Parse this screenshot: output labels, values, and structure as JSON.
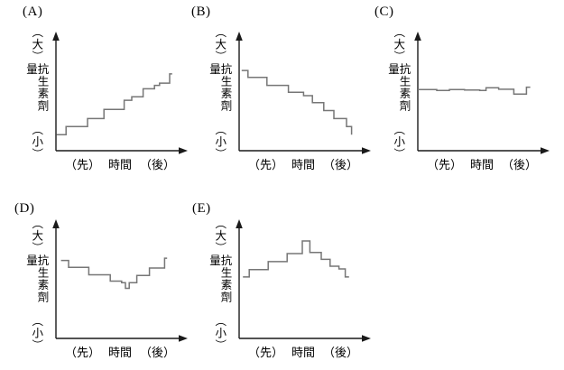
{
  "figure_title": "",
  "axis_text": {
    "y_max": "（大）",
    "y_title": "抗生素劑量",
    "y_min": "（小）",
    "x_left": "（先）",
    "x_title": "時間",
    "x_right": "（後）"
  },
  "panels": [
    {
      "label": "(A)",
      "y_max": "（大）",
      "y_title": "抗生素劑量",
      "y_min": "（小）",
      "x_left": "（先）",
      "x_title": "時間",
      "x_right": "（後）"
    },
    {
      "label": "(B)",
      "y_max": "（大）",
      "y_title": "抗生素劑量",
      "y_min": "（小）",
      "x_left": "（先）",
      "x_title": "時間",
      "x_right": "（後）"
    },
    {
      "label": "(C)",
      "y_max": "（大）",
      "y_title": "抗生素劑量",
      "y_min": "（小）",
      "x_left": "（先）",
      "x_title": "時間",
      "x_right": "（後）"
    },
    {
      "label": "(D)",
      "y_max": "（大）",
      "y_title": "抗生素劑量",
      "y_min": "（小）",
      "x_left": "（先）",
      "x_title": "時間",
      "x_right": "（後）"
    },
    {
      "label": "(E)",
      "y_max": "（大）",
      "y_title": "抗生素劑量",
      "y_min": "（小）",
      "x_left": "（先）",
      "x_title": "時間",
      "x_right": "（後）"
    }
  ],
  "colors": {
    "axis": "#1a1a1a",
    "step_line": "#767676",
    "background": "#ffffff"
  },
  "chart_data": [
    {
      "panel": "(A)",
      "type": "line",
      "line_style": "step",
      "title": "",
      "xlabel": "（先） 時間 （後）",
      "ylabel": "（大）抗生素劑量（小）",
      "x_range": [
        0,
        100
      ],
      "ylim": [
        0,
        100
      ],
      "grid": false,
      "legend": "none",
      "trend": "antibiotic dose increases stepwise over time",
      "points": [
        [
          0.5,
          14
        ],
        [
          8,
          14
        ],
        [
          8,
          21
        ],
        [
          25,
          21
        ],
        [
          25,
          28
        ],
        [
          38,
          28
        ],
        [
          38,
          36
        ],
        [
          54,
          36
        ],
        [
          54,
          44
        ],
        [
          60,
          44
        ],
        [
          60,
          47
        ],
        [
          69,
          47
        ],
        [
          69,
          54
        ],
        [
          78,
          54
        ],
        [
          78,
          57
        ],
        [
          82,
          57
        ],
        [
          82,
          59
        ],
        [
          90,
          59
        ],
        [
          90,
          67
        ],
        [
          92,
          67
        ]
      ]
    },
    {
      "panel": "(B)",
      "type": "line",
      "line_style": "step",
      "title": "",
      "xlabel": "（先） 時間 （後）",
      "ylabel": "（大）抗生素劑量（小）",
      "x_range": [
        0,
        100
      ],
      "ylim": [
        0,
        100
      ],
      "grid": false,
      "legend": "none",
      "trend": "antibiotic dose decreases stepwise over time",
      "points": [
        [
          2,
          70
        ],
        [
          7,
          70
        ],
        [
          7,
          64
        ],
        [
          22,
          64
        ],
        [
          22,
          57
        ],
        [
          39,
          57
        ],
        [
          39,
          51
        ],
        [
          51,
          51
        ],
        [
          51,
          48
        ],
        [
          58,
          48
        ],
        [
          58,
          42
        ],
        [
          67,
          42
        ],
        [
          67,
          35
        ],
        [
          75,
          35
        ],
        [
          75,
          28
        ],
        [
          85,
          28
        ],
        [
          85,
          21
        ],
        [
          89,
          21
        ],
        [
          89,
          14
        ]
      ]
    },
    {
      "panel": "(C)",
      "type": "line",
      "line_style": "step",
      "title": "",
      "xlabel": "（先） 時間 （後）",
      "ylabel": "（大）抗生素劑量（小）",
      "x_range": [
        0,
        100
      ],
      "ylim": [
        0,
        100
      ],
      "grid": false,
      "legend": "none",
      "trend": "antibiotic dose stays nearly constant with small fluctuations",
      "points": [
        [
          0,
          53.4
        ],
        [
          15,
          53.4
        ],
        [
          15,
          52.6
        ],
        [
          25,
          52.6
        ],
        [
          25,
          53.4
        ],
        [
          37,
          53.4
        ],
        [
          37,
          53
        ],
        [
          49,
          53
        ],
        [
          49,
          52.6
        ],
        [
          54,
          52.6
        ],
        [
          54,
          54.9
        ],
        [
          64,
          54.9
        ],
        [
          64,
          53.6
        ],
        [
          76,
          53.6
        ],
        [
          76,
          49.4
        ],
        [
          86,
          49.4
        ],
        [
          86,
          55.4
        ],
        [
          89,
          55.4
        ]
      ]
    },
    {
      "panel": "(D)",
      "type": "line",
      "line_style": "step",
      "title": "",
      "xlabel": "（先） 時間 （後）",
      "ylabel": "（大）抗生素劑量（小）",
      "x_range": [
        0,
        100
      ],
      "ylim": [
        0,
        100
      ],
      "grid": false,
      "legend": "none",
      "trend": "antibiotic dose decreases to a minimum mid-way then increases (valley shape)",
      "points": [
        [
          4,
          68
        ],
        [
          10,
          68
        ],
        [
          10,
          62
        ],
        [
          26,
          62
        ],
        [
          26,
          55.5
        ],
        [
          43,
          55.5
        ],
        [
          43,
          50
        ],
        [
          52,
          50
        ],
        [
          52,
          48.7
        ],
        [
          55,
          48.7
        ],
        [
          55,
          43.7
        ],
        [
          58,
          43.7
        ],
        [
          58,
          48.7
        ],
        [
          64,
          48.7
        ],
        [
          64,
          55
        ],
        [
          74,
          55
        ],
        [
          74,
          61.4
        ],
        [
          86,
          61.4
        ],
        [
          86,
          70
        ],
        [
          88,
          70
        ]
      ]
    },
    {
      "panel": "(E)",
      "type": "line",
      "line_style": "step",
      "title": "",
      "xlabel": "（先） 時間 （後）",
      "ylabel": "（大）抗生素劑量（小）",
      "x_range": [
        0,
        100
      ],
      "ylim": [
        0,
        100
      ],
      "grid": false,
      "legend": "none",
      "trend": "antibiotic dose increases to a peak mid-way then decreases (peak shape)",
      "points": [
        [
          3,
          53.6
        ],
        [
          8,
          53.6
        ],
        [
          8,
          60
        ],
        [
          23,
          60
        ],
        [
          23,
          67
        ],
        [
          38,
          67
        ],
        [
          38,
          74
        ],
        [
          50,
          74
        ],
        [
          50,
          85
        ],
        [
          56,
          85
        ],
        [
          56,
          75
        ],
        [
          65,
          75
        ],
        [
          65,
          69
        ],
        [
          72,
          69
        ],
        [
          72,
          63
        ],
        [
          79,
          63
        ],
        [
          79,
          60.6
        ],
        [
          84,
          60.6
        ],
        [
          84,
          53.6
        ],
        [
          87,
          53.6
        ]
      ]
    }
  ]
}
